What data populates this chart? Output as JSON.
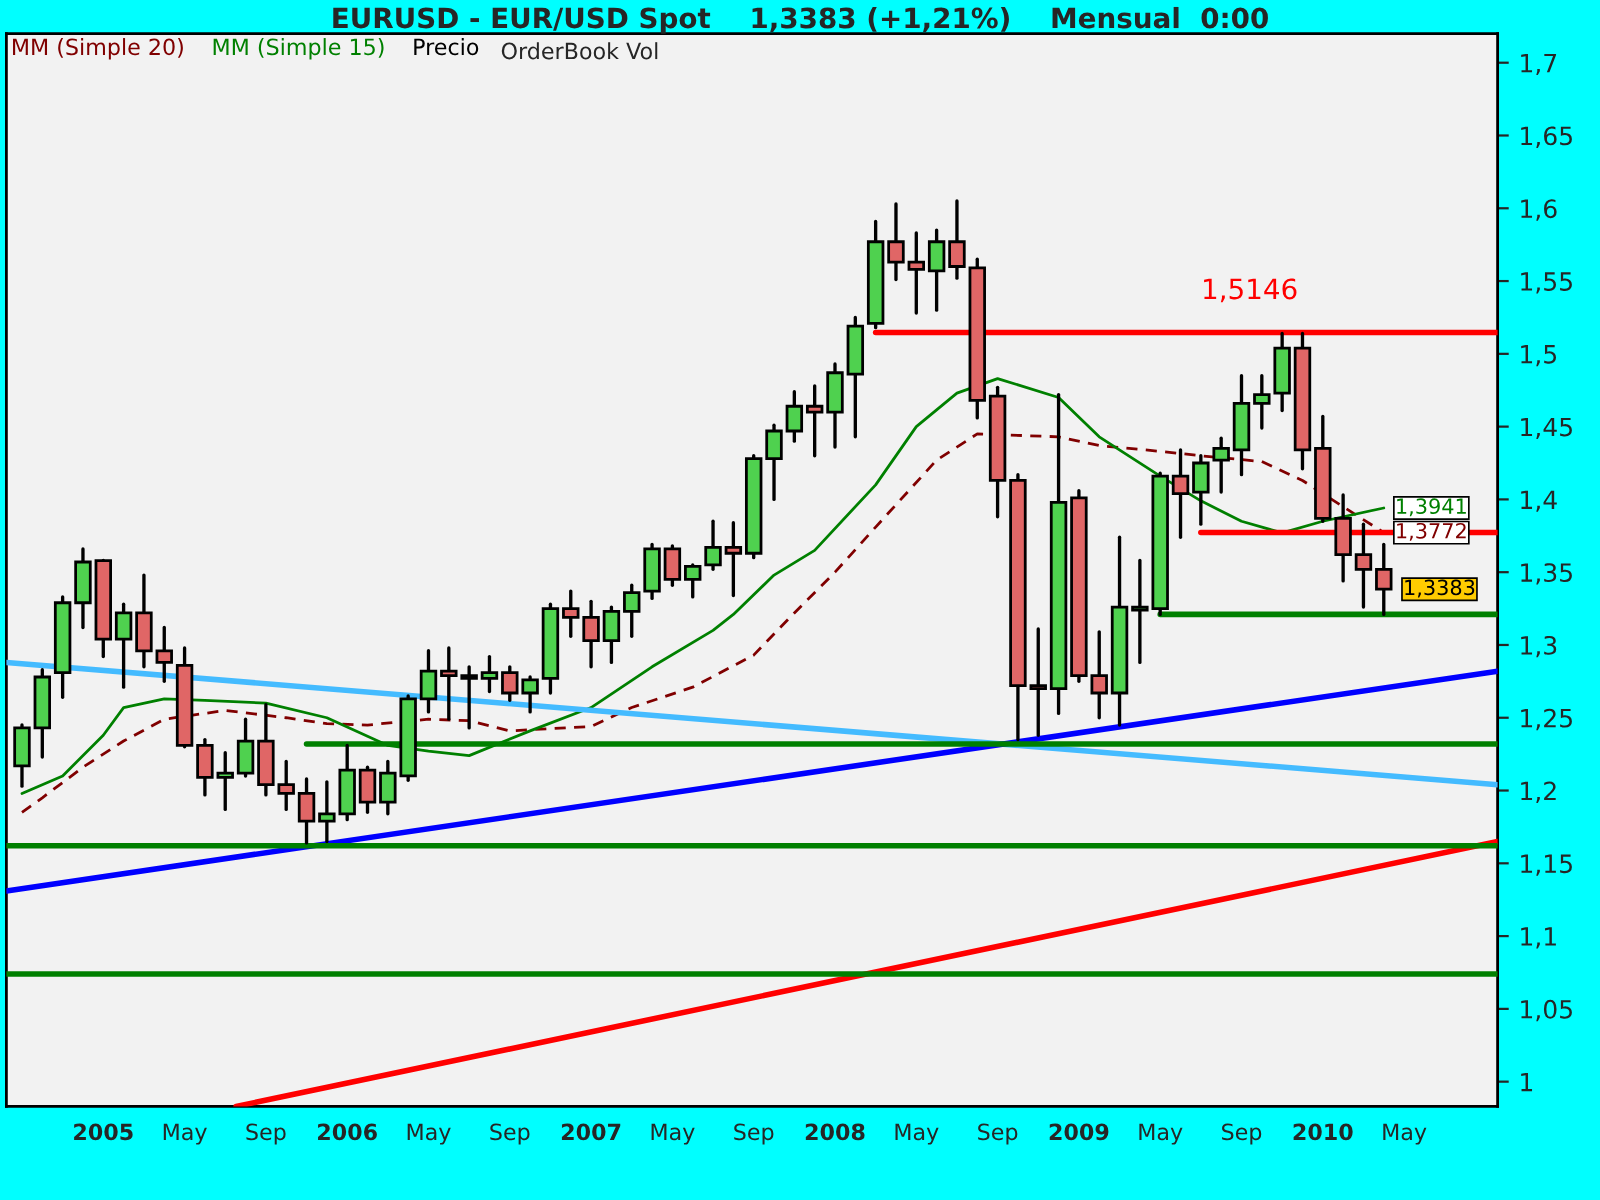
{
  "chart_data": {
    "type": "candlestick",
    "title": "EURUSD - EUR/USD Spot    1,3383 (+1,21%)    Mensual  0:00",
    "legend": "top left",
    "grid": false,
    "xlim": [
      "2004-08-08",
      "2010-09-19"
    ],
    "xticks": [
      {
        "value": "2005-01",
        "label": "2005"
      },
      {
        "value": "2005-05",
        "label": "May"
      },
      {
        "value": "2005-09",
        "label": "Sep"
      },
      {
        "value": "2006-01",
        "label": "2006"
      },
      {
        "value": "2006-05",
        "label": "May"
      },
      {
        "value": "2006-09",
        "label": "Sep"
      },
      {
        "value": "2007-01",
        "label": "2007"
      },
      {
        "value": "2007-05",
        "label": "May"
      },
      {
        "value": "2007-09",
        "label": "Sep"
      },
      {
        "value": "2008-01",
        "label": "2008"
      },
      {
        "value": "2008-05",
        "label": "May"
      },
      {
        "value": "2008-09",
        "label": "Sep"
      },
      {
        "value": "2009-01",
        "label": "2009"
      },
      {
        "value": "2009-05",
        "label": "May"
      },
      {
        "value": "2009-09",
        "label": "Sep"
      },
      {
        "value": "2010-01",
        "label": "2010"
      },
      {
        "value": "2010-05",
        "label": "May"
      }
    ],
    "ylim": [
      0.983,
      1.72
    ],
    "yticks": [
      1,
      {
        "value": 1.05,
        "label": "1,05"
      },
      {
        "value": 1.1,
        "label": "1,1"
      },
      {
        "value": 1.15,
        "label": "1,15"
      },
      {
        "value": 1.2,
        "label": "1,2"
      },
      {
        "value": 1.25,
        "label": "1,25"
      },
      {
        "value": 1.3,
        "label": "1,3"
      },
      {
        "value": 1.35,
        "label": "1,35"
      },
      {
        "value": 1.4,
        "label": "1,4"
      },
      {
        "value": 1.45,
        "label": "1,45"
      },
      {
        "value": 1.5,
        "label": "1,5"
      },
      {
        "value": 1.55,
        "label": "1,55"
      },
      {
        "value": 1.6,
        "label": "1,6"
      },
      {
        "value": 1.65,
        "label": "1,65"
      },
      {
        "value": 1.7,
        "label": "1,7"
      }
    ],
    "annotations": [
      {
        "text": "1,5146",
        "x": "2009-09-13",
        "y": 1.5146
      },
      "OrderBook Vol"
    ],
    "series": [
      {
        "name": "Precio",
        "x": [
          "2004-09",
          "2004-10",
          "2004-11",
          "2004-12",
          "2005-01",
          "2005-02",
          "2005-03",
          "2005-04",
          "2005-05",
          "2005-06",
          "2005-07",
          "2005-08",
          "2005-09",
          "2005-10",
          "2005-11",
          "2005-12",
          "2006-01",
          "2006-02",
          "2006-03",
          "2006-04",
          "2006-05",
          "2006-06",
          "2006-07",
          "2006-08",
          "2006-09",
          "2006-10",
          "2006-11",
          "2006-12",
          "2007-01",
          "2007-02",
          "2007-03",
          "2007-04",
          "2007-05",
          "2007-06",
          "2007-07",
          "2007-08",
          "2007-09",
          "2007-10",
          "2007-11",
          "2007-12",
          "2008-01",
          "2008-02",
          "2008-03",
          "2008-04",
          "2008-05",
          "2008-06",
          "2008-07",
          "2008-08",
          "2008-09",
          "2008-10",
          "2008-11",
          "2008-12",
          "2009-01",
          "2009-02",
          "2009-03",
          "2009-04",
          "2009-05",
          "2009-06",
          "2009-07",
          "2009-08",
          "2009-09",
          "2009-10",
          "2009-11",
          "2009-12",
          "2010-01",
          "2010-02",
          "2010-03",
          "2010-04"
        ],
        "ohlc": [
          [
            1.217,
            1.245,
            1.203,
            1.243
          ],
          [
            1.243,
            1.283,
            1.223,
            1.278
          ],
          [
            1.281,
            1.333,
            1.264,
            1.329
          ],
          [
            1.329,
            1.366,
            1.312,
            1.357
          ],
          [
            1.358,
            1.358,
            1.292,
            1.304
          ],
          [
            1.304,
            1.328,
            1.271,
            1.322
          ],
          [
            1.322,
            1.348,
            1.285,
            1.296
          ],
          [
            1.296,
            1.312,
            1.275,
            1.288
          ],
          [
            1.286,
            1.298,
            1.23,
            1.231
          ],
          [
            1.231,
            1.235,
            1.197,
            1.209
          ],
          [
            1.209,
            1.226,
            1.187,
            1.212
          ],
          [
            1.212,
            1.249,
            1.21,
            1.234
          ],
          [
            1.234,
            1.259,
            1.197,
            1.204
          ],
          [
            1.204,
            1.22,
            1.187,
            1.198
          ],
          [
            1.198,
            1.208,
            1.164,
            1.179
          ],
          [
            1.179,
            1.206,
            1.165,
            1.184
          ],
          [
            1.184,
            1.231,
            1.18,
            1.214
          ],
          [
            1.214,
            1.216,
            1.185,
            1.192
          ],
          [
            1.192,
            1.22,
            1.184,
            1.212
          ],
          [
            1.21,
            1.265,
            1.207,
            1.263
          ],
          [
            1.263,
            1.296,
            1.254,
            1.282
          ],
          [
            1.282,
            1.298,
            1.249,
            1.279
          ],
          [
            1.279,
            1.285,
            1.243,
            1.277
          ],
          [
            1.277,
            1.292,
            1.268,
            1.281
          ],
          [
            1.281,
            1.285,
            1.262,
            1.267
          ],
          [
            1.267,
            1.278,
            1.254,
            1.276
          ],
          [
            1.277,
            1.328,
            1.267,
            1.325
          ],
          [
            1.325,
            1.337,
            1.306,
            1.319
          ],
          [
            1.319,
            1.33,
            1.285,
            1.303
          ],
          [
            1.303,
            1.326,
            1.288,
            1.323
          ],
          [
            1.323,
            1.341,
            1.306,
            1.336
          ],
          [
            1.337,
            1.369,
            1.332,
            1.366
          ],
          [
            1.366,
            1.368,
            1.341,
            1.345
          ],
          [
            1.345,
            1.355,
            1.333,
            1.354
          ],
          [
            1.355,
            1.385,
            1.352,
            1.367
          ],
          [
            1.367,
            1.384,
            1.334,
            1.363
          ],
          [
            1.363,
            1.43,
            1.36,
            1.428
          ],
          [
            1.428,
            1.451,
            1.4,
            1.447
          ],
          [
            1.447,
            1.474,
            1.44,
            1.464
          ],
          [
            1.464,
            1.478,
            1.43,
            1.46
          ],
          [
            1.46,
            1.493,
            1.436,
            1.487
          ],
          [
            1.486,
            1.525,
            1.443,
            1.519
          ],
          [
            1.521,
            1.591,
            1.518,
            1.577
          ],
          [
            1.577,
            1.603,
            1.551,
            1.563
          ],
          [
            1.563,
            1.583,
            1.528,
            1.558
          ],
          [
            1.557,
            1.585,
            1.53,
            1.577
          ],
          [
            1.577,
            1.605,
            1.552,
            1.56
          ],
          [
            1.559,
            1.565,
            1.456,
            1.468
          ],
          [
            1.471,
            1.477,
            1.388,
            1.413
          ],
          [
            1.413,
            1.417,
            1.235,
            1.272
          ],
          [
            1.272,
            1.311,
            1.238,
            1.27
          ],
          [
            1.27,
            1.472,
            1.253,
            1.398
          ],
          [
            1.401,
            1.406,
            1.275,
            1.279
          ],
          [
            1.279,
            1.309,
            1.25,
            1.267
          ],
          [
            1.267,
            1.374,
            1.245,
            1.326
          ],
          [
            1.324,
            1.358,
            1.288,
            1.326
          ],
          [
            1.325,
            1.418,
            1.321,
            1.416
          ],
          [
            1.416,
            1.434,
            1.374,
            1.404
          ],
          [
            1.405,
            1.43,
            1.383,
            1.425
          ],
          [
            1.427,
            1.442,
            1.405,
            1.435
          ],
          [
            1.434,
            1.485,
            1.417,
            1.466
          ],
          [
            1.466,
            1.485,
            1.449,
            1.472
          ],
          [
            1.473,
            1.514,
            1.461,
            1.504
          ],
          [
            1.504,
            1.514,
            1.421,
            1.434
          ],
          [
            1.435,
            1.457,
            1.385,
            1.387
          ],
          [
            1.387,
            1.403,
            1.344,
            1.362
          ],
          [
            1.362,
            1.383,
            1.326,
            1.352
          ],
          [
            1.352,
            1.369,
            1.321,
            1.3383
          ]
        ],
        "colors": [
          "#4fd14f",
          "#4fd14f",
          "#4fd14f",
          "#4fd14f",
          "#e06666",
          "#4fd14f",
          "#e06666",
          "#e06666",
          "#e06666",
          "#e06666",
          "#4fd14f",
          "#4fd14f",
          "#e06666",
          "#e06666",
          "#e06666",
          "#4fd14f",
          "#4fd14f",
          "#e06666",
          "#4fd14f",
          "#4fd14f",
          "#4fd14f",
          "#e06666",
          "#e06666",
          "#4fd14f",
          "#e06666",
          "#4fd14f",
          "#4fd14f",
          "#e06666",
          "#e06666",
          "#4fd14f",
          "#4fd14f",
          "#4fd14f",
          "#e06666",
          "#4fd14f",
          "#4fd14f",
          "#e06666",
          "#4fd14f",
          "#4fd14f",
          "#4fd14f",
          "#e06666",
          "#4fd14f",
          "#4fd14f",
          "#4fd14f",
          "#e06666",
          "#e06666",
          "#4fd14f",
          "#e06666",
          "#e06666",
          "#e06666",
          "#e06666",
          "#e06666",
          "#4fd14f",
          "#e06666",
          "#e06666",
          "#4fd14f",
          "#4fd14f",
          "#4fd14f",
          "#e06666",
          "#4fd14f",
          "#4fd14f",
          "#4fd14f",
          "#4fd14f",
          "#4fd14f",
          "#e06666",
          "#e06666",
          "#e06666",
          "#e06666",
          "#e06666"
        ],
        "value_labels": [
          null,
          null,
          null,
          null,
          null,
          null,
          null,
          null,
          null,
          null,
          null,
          null,
          null,
          null,
          null,
          null,
          null,
          null,
          null,
          null,
          null,
          null,
          null,
          null,
          null,
          null,
          null,
          null,
          null,
          null,
          null,
          null,
          null,
          null,
          null,
          null,
          null,
          null,
          null,
          null,
          null,
          null,
          null,
          null,
          null,
          null,
          null,
          null,
          null,
          null,
          null,
          null,
          null,
          null,
          null,
          null,
          null,
          null,
          null,
          null,
          null,
          null,
          null,
          null,
          null,
          null,
          null,
          "1,3383"
        ]
      },
      {
        "type": "line",
        "name": "MM (Simple 20)",
        "color": "#800000",
        "line_style": "dashed",
        "x": [
          "2004-09",
          "2004-10",
          "2004-12",
          "2005-02",
          "2005-04",
          "2005-06",
          "2005-07",
          "2005-10",
          "2005-12",
          "2006-02",
          "2006-05",
          "2006-07",
          "2006-09",
          "2007-01",
          "2007-03",
          "2007-06",
          "2007-09",
          "2007-11",
          "2008-01",
          "2008-03",
          "2008-06",
          "2008-08",
          "2008-12",
          "2009-02",
          "2009-05",
          "2009-07",
          "2009-10",
          "2009-12",
          "2010-02",
          "2010-04"
        ],
        "values": [
          1.185,
          1.195,
          1.216,
          1.234,
          1.249,
          1.253,
          1.255,
          1.25,
          1.246,
          1.245,
          1.249,
          1.248,
          1.241,
          1.244,
          1.257,
          1.271,
          1.293,
          1.322,
          1.35,
          1.381,
          1.427,
          1.445,
          1.443,
          1.437,
          1.433,
          1.43,
          1.426,
          1.413,
          1.395,
          1.3772
        ],
        "value_labels": [
          null,
          null,
          null,
          null,
          null,
          null,
          null,
          null,
          null,
          null,
          null,
          null,
          null,
          null,
          null,
          null,
          null,
          null,
          null,
          null,
          null,
          null,
          null,
          null,
          null,
          null,
          null,
          null,
          null,
          "1,3772"
        ]
      },
      {
        "type": "line",
        "name": "MM (Simple 15)",
        "color": "#008000",
        "line_style": "solid",
        "x": [
          "2004-09",
          "2004-11",
          "2005-01",
          "2005-02",
          "2005-04",
          "2005-06",
          "2005-09",
          "2005-12",
          "2006-03",
          "2006-05",
          "2006-07",
          "2006-10",
          "2007-01",
          "2007-04",
          "2007-07",
          "2007-08",
          "2007-10",
          "2007-12",
          "2008-03",
          "2008-05",
          "2008-07",
          "2008-09",
          "2008-12",
          "2009-02",
          "2009-05",
          "2009-07",
          "2009-09",
          "2009-11",
          "2010-01",
          "2010-04"
        ],
        "values": [
          1.198,
          1.21,
          1.238,
          1.257,
          1.263,
          1.262,
          1.26,
          1.25,
          1.231,
          1.227,
          1.224,
          1.241,
          1.257,
          1.285,
          1.31,
          1.321,
          1.348,
          1.365,
          1.41,
          1.45,
          1.473,
          1.483,
          1.47,
          1.443,
          1.416,
          1.399,
          1.385,
          1.377,
          1.385,
          1.3941
        ],
        "value_labels": [
          null,
          null,
          null,
          null,
          null,
          null,
          null,
          null,
          null,
          null,
          null,
          null,
          null,
          null,
          null,
          null,
          null,
          null,
          null,
          null,
          null,
          null,
          null,
          null,
          null,
          null,
          null,
          null,
          null,
          "1,3941"
        ]
      },
      {
        "type": "line",
        "color": "#44bbff",
        "line_style": "solid",
        "x": [
          "2004-08-08",
          "2010-09-19"
        ],
        "values": [
          1.288,
          1.204
        ]
      },
      {
        "type": "line",
        "color": "#0000ff",
        "line_style": "solid",
        "x": [
          "2004-08-08",
          "2010-09-19"
        ],
        "values": [
          1.131,
          1.282
        ]
      },
      {
        "type": "line",
        "color": "#ff0000",
        "line_style": "solid",
        "x": [
          "2005-07-17",
          "2010-09-19"
        ],
        "values": [
          0.983,
          1.165
        ]
      },
      {
        "type": "line",
        "color": "#ff0000",
        "line_style": "solid",
        "x": [
          "2008-03",
          "2010-09-19"
        ],
        "values": [
          1.5146,
          1.5146
        ]
      },
      {
        "type": "line",
        "color": "#ff0000",
        "line_style": "solid",
        "x": [
          "2009-07",
          "2010-09-19"
        ],
        "values": [
          1.3772,
          1.3772
        ]
      },
      {
        "type": "line",
        "color": "#008000",
        "line_style": "solid",
        "x": [
          "2009-05",
          "2010-09-19"
        ],
        "values": [
          1.321,
          1.321
        ]
      },
      {
        "type": "line",
        "color": "#008000",
        "line_style": "solid",
        "x": [
          "2005-11",
          "2010-09-19"
        ],
        "values": [
          1.232,
          1.232
        ]
      },
      {
        "type": "line",
        "color": "#008000",
        "line_style": "solid",
        "x": [
          "2004-08-08",
          "2010-09-19"
        ],
        "values": [
          1.162,
          1.162
        ]
      },
      {
        "type": "line",
        "color": "#008000",
        "line_style": "solid",
        "x": [
          "2004-08-08",
          "2010-09-19"
        ],
        "values": [
          1.074,
          1.074
        ]
      }
    ]
  }
}
